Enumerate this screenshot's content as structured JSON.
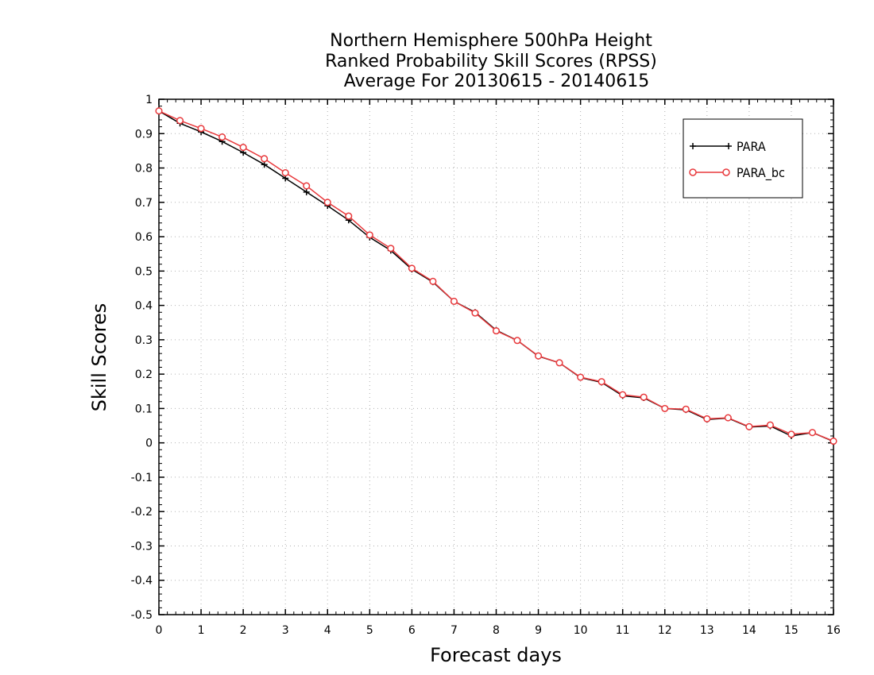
{
  "chart_data": {
    "type": "line",
    "title": [
      "Northern Hemisphere 500hPa Height",
      "Ranked Probability Skill Scores (RPSS)",
      "Average For 20130615 - 20140615"
    ],
    "xlabel": "Forecast days",
    "ylabel": "Skill Scores",
    "xlim": [
      0,
      16
    ],
    "ylim": [
      -0.5,
      1
    ],
    "x_ticks": [
      "0",
      "1",
      "2",
      "3",
      "4",
      "5",
      "6",
      "7",
      "8",
      "9",
      "10",
      "11",
      "12",
      "13",
      "14",
      "15",
      "16"
    ],
    "y_ticks": [
      "-0.5",
      "-0.4",
      "-0.3",
      "-0.2",
      "-0.1",
      "0",
      "0.1",
      "0.2",
      "0.3",
      "0.4",
      "0.5",
      "0.6",
      "0.7",
      "0.8",
      "0.9",
      "1"
    ],
    "grid": true,
    "legend_position": "top-right",
    "x": [
      0,
      0.5,
      1,
      1.5,
      2,
      2.5,
      3,
      3.5,
      4,
      4.5,
      5,
      5.5,
      6,
      6.5,
      7,
      7.5,
      8,
      8.5,
      9,
      9.5,
      10,
      10.5,
      11,
      11.5,
      12,
      12.5,
      13,
      13.5,
      14,
      14.5,
      15,
      15.5,
      16
    ],
    "series": [
      {
        "name": "PARA",
        "color": "#000000",
        "marker": "plus",
        "values": [
          0.966,
          0.93,
          0.905,
          0.877,
          0.845,
          0.81,
          0.77,
          0.73,
          0.69,
          0.648,
          0.598,
          0.56,
          0.505,
          0.468,
          0.412,
          0.38,
          0.328,
          0.298,
          0.252,
          0.233,
          0.19,
          0.176,
          0.137,
          0.131,
          0.1,
          0.096,
          0.068,
          0.072,
          0.046,
          0.049,
          0.02,
          0.03,
          0.004
        ]
      },
      {
        "name": "PARA_bc",
        "color": "#e8393c",
        "marker": "circle",
        "values": [
          0.966,
          0.938,
          0.915,
          0.89,
          0.86,
          0.827,
          0.786,
          0.748,
          0.7,
          0.66,
          0.605,
          0.566,
          0.508,
          0.47,
          0.412,
          0.378,
          0.326,
          0.298,
          0.253,
          0.233,
          0.191,
          0.178,
          0.14,
          0.133,
          0.1,
          0.098,
          0.07,
          0.073,
          0.047,
          0.052,
          0.025,
          0.03,
          0.005
        ]
      }
    ]
  }
}
